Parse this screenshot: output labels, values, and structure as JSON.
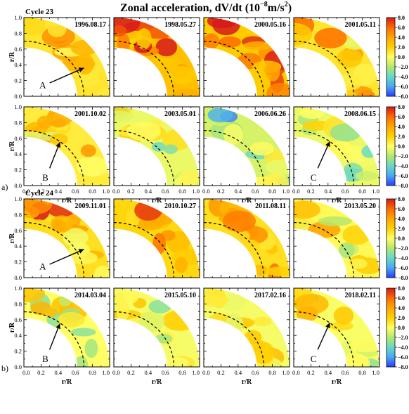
{
  "title": "Zonal acceleration, dV/dt (10",
  "title_exp": "−8",
  "title_unit": "m/s",
  "title_unit_exp": "2",
  "title_close": ")",
  "chart_data": {
    "type": "heatmap",
    "title": "Zonal acceleration, dV/dt (10^-8 m/s^2)",
    "xlabel": "r/R",
    "ylabel": "r/R",
    "xlim": [
      0,
      1
    ],
    "ylim": [
      0,
      1
    ],
    "x_ticks": [
      "0.0",
      "0.2",
      "0.4",
      "0.6",
      "0.8",
      "1.0"
    ],
    "y_ticks": [
      "0.0",
      "0.2",
      "0.4",
      "0.6",
      "0.8",
      "1.0"
    ],
    "tachocline_radius": 0.7,
    "colorbar": {
      "min": -8,
      "max": 8,
      "ticks": [
        "8.0",
        "6.0",
        "4.0",
        "2.0",
        "0.0",
        "−2.0",
        "−4.0",
        "−6.0",
        "−8.0"
      ],
      "colors": [
        "#d7191c",
        "#ff6a00",
        "#ffa500",
        "#ffd000",
        "#ffff66",
        "#b5e86b",
        "#66d9c8",
        "#4aa8f0",
        "#2a3cff"
      ]
    },
    "groups": [
      {
        "label": "Cycle 23",
        "panel_tag": "a)",
        "rows": [
          [
            {
              "date": "1996.08.17",
              "bias": 2.0,
              "annot": "A"
            },
            {
              "date": "1998.05.27",
              "bias": 5.0
            },
            {
              "date": "2000.05.16",
              "bias": 4.0
            },
            {
              "date": "2001.05.11",
              "bias": 2.0
            }
          ],
          [
            {
              "date": "2001.10.02",
              "bias": 1.5,
              "annot": "B"
            },
            {
              "date": "2003.05.01",
              "bias": -1.0
            },
            {
              "date": "2006.06.26",
              "bias": -2.0
            },
            {
              "date": "2008.06.15",
              "bias": -1.0,
              "annot": "C"
            }
          ]
        ]
      },
      {
        "label": "Cycle 24",
        "panel_tag": "b)",
        "rows": [
          [
            {
              "date": "2009.11.01",
              "bias": 2.5,
              "annot": "A"
            },
            {
              "date": "2010.10.27",
              "bias": 3.0
            },
            {
              "date": "2011.08.11",
              "bias": 2.5
            },
            {
              "date": "2013.05.20",
              "bias": 0.5
            }
          ],
          [
            {
              "date": "2014.03.04",
              "bias": 0.0,
              "annot": "B"
            },
            {
              "date": "2015.05.10",
              "bias": -0.5
            },
            {
              "date": "2017.02.16",
              "bias": -0.5
            },
            {
              "date": "2018.02.11",
              "bias": -0.3,
              "annot": "C"
            }
          ]
        ]
      }
    ]
  }
}
